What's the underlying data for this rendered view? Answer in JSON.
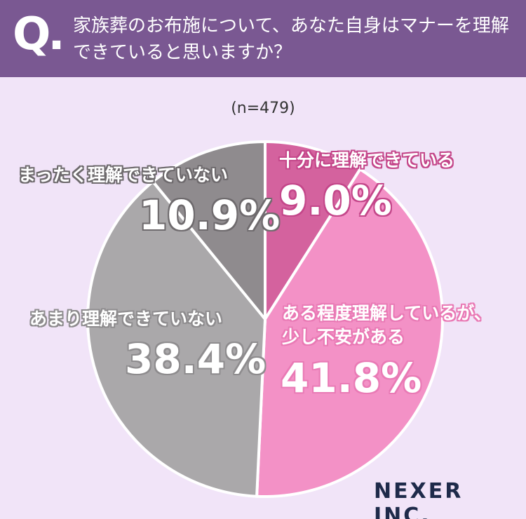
{
  "chart_data": {
    "type": "pie",
    "title_prefix": "Q.",
    "title": "家族葬のお布施について、あなた自身はマナーを理解できていると思いますか？",
    "subtitle": "(n=479)",
    "source": "NEXER INC.",
    "categories": [
      "十分に理解できている",
      "ある程度理解しているが、\n少し不安がある",
      "あまり理解できていない",
      "まったく理解できていない"
    ],
    "values": [
      9.0,
      41.8,
      38.4,
      10.9
    ],
    "value_labels": [
      "9.0%",
      "41.8%",
      "38.4%",
      "10.9%"
    ],
    "colors": [
      "#d4629e",
      "#f391c6",
      "#aaa8aa",
      "#8f8b8e"
    ]
  }
}
